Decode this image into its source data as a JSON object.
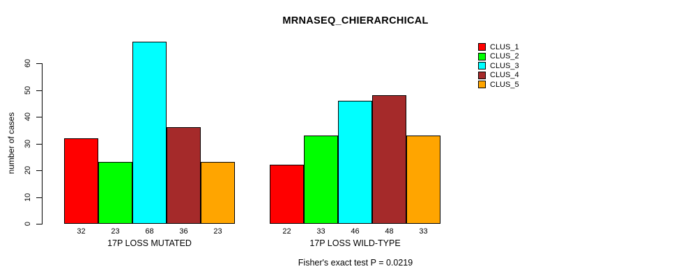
{
  "chart_data": {
    "type": "bar",
    "title": "MRNASEQ_CHIERARCHICAL",
    "ylabel": "number of cases",
    "xlabel": "",
    "ylim": [
      0,
      68
    ],
    "yticks": [
      0,
      10,
      20,
      30,
      40,
      50,
      60
    ],
    "grid": false,
    "legend_position": "right",
    "bar_value_labels": true,
    "categories": [
      "17P LOSS MUTATED",
      "17P LOSS WILD-TYPE"
    ],
    "series": [
      {
        "name": "CLUS_1",
        "color": "#FF0000",
        "values": [
          32,
          22
        ]
      },
      {
        "name": "CLUS_2",
        "color": "#00FF00",
        "values": [
          23,
          33
        ]
      },
      {
        "name": "CLUS_3",
        "color": "#00FFFF",
        "values": [
          68,
          46
        ]
      },
      {
        "name": "CLUS_4",
        "color": "#A52A2A",
        "values": [
          36,
          48
        ]
      },
      {
        "name": "CLUS_5",
        "color": "#FFA500",
        "values": [
          23,
          33
        ]
      }
    ],
    "annotation": "Fisher's exact test P = 0.0219"
  }
}
